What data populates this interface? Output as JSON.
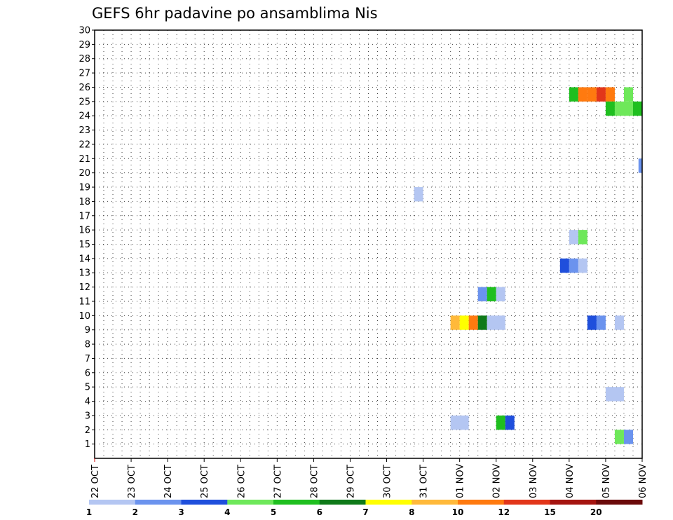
{
  "chart_data": {
    "type": "heatmap",
    "title": "GEFS 6hr padavine po ansamblima Nis",
    "xlabel": "",
    "ylabel": "",
    "x_tick_labels": [
      "22 OCT",
      "23 OCT",
      "24 OCT",
      "25 OCT",
      "26 OCT",
      "27 OCT",
      "28 OCT",
      "29 OCT",
      "30 OCT",
      "31 OCT",
      "01 NOV",
      "02 NOV",
      "03 NOV",
      "04 NOV",
      "05 NOV",
      "06 NOV"
    ],
    "y_tick_labels": [
      "1",
      "2",
      "3",
      "4",
      "5",
      "6",
      "7",
      "8",
      "9",
      "10",
      "11",
      "12",
      "13",
      "14",
      "15",
      "16",
      "17",
      "18",
      "19",
      "20",
      "21",
      "22",
      "23",
      "24",
      "25",
      "26",
      "27",
      "28",
      "29",
      "30"
    ],
    "xlim_days": [
      0,
      15
    ],
    "ylim": [
      0,
      30
    ],
    "grid": true,
    "colorbar": {
      "labels": [
        "1",
        "2",
        "3",
        "4",
        "5",
        "6",
        "7",
        "8",
        "10",
        "12",
        "15",
        "20"
      ],
      "colors": [
        "#b4c6f2",
        "#6b93ee",
        "#1f4fdc",
        "#6ee85a",
        "#1fbf1f",
        "#0f7a19",
        "#ffff00",
        "#ffb93a",
        "#ff7a0f",
        "#e2361a",
        "#a51410",
        "#6b0a0a"
      ]
    },
    "cells": [
      {
        "member": 25.5,
        "day": 13.0,
        "days": 0.25,
        "size": 1,
        "color": "#1fbf1f"
      },
      {
        "member": 25.5,
        "day": 13.25,
        "days": 0.25,
        "size": 1,
        "color": "#ff7a0f"
      },
      {
        "member": 25.5,
        "day": 13.5,
        "days": 0.25,
        "size": 1,
        "color": "#ff7a0f"
      },
      {
        "member": 25.5,
        "day": 13.75,
        "days": 0.25,
        "size": 1,
        "color": "#e2361a"
      },
      {
        "member": 25.5,
        "day": 14.0,
        "days": 0.25,
        "size": 1,
        "color": "#ff7a0f"
      },
      {
        "member": 25.5,
        "day": 14.5,
        "days": 0.25,
        "size": 1,
        "color": "#6ee85a"
      },
      {
        "member": 24.5,
        "day": 14.0,
        "days": 0.25,
        "size": 1,
        "color": "#1fbf1f"
      },
      {
        "member": 24.5,
        "day": 14.25,
        "days": 0.5,
        "size": 1,
        "color": "#6ee85a"
      },
      {
        "member": 24.5,
        "day": 14.75,
        "days": 0.25,
        "size": 1,
        "color": "#1fbf1f"
      },
      {
        "member": 20.5,
        "day": 14.9,
        "days": 0.1,
        "size": 1,
        "color": "#6b93ee"
      },
      {
        "member": 18.5,
        "day": 8.75,
        "days": 0.25,
        "size": 1,
        "color": "#b4c6f2"
      },
      {
        "member": 15.5,
        "day": 13.0,
        "days": 0.25,
        "size": 1,
        "color": "#b4c6f2"
      },
      {
        "member": 15.5,
        "day": 13.25,
        "days": 0.25,
        "size": 1,
        "color": "#6ee85a"
      },
      {
        "member": 13.5,
        "day": 12.75,
        "days": 0.25,
        "size": 1,
        "color": "#1f4fdc"
      },
      {
        "member": 13.5,
        "day": 13.0,
        "days": 0.25,
        "size": 1,
        "color": "#6b93ee"
      },
      {
        "member": 13.5,
        "day": 13.25,
        "days": 0.25,
        "size": 1,
        "color": "#b4c6f2"
      },
      {
        "member": 11.5,
        "day": 10.5,
        "days": 0.25,
        "size": 1,
        "color": "#6b93ee"
      },
      {
        "member": 11.5,
        "day": 10.75,
        "days": 0.25,
        "size": 1,
        "color": "#1fbf1f"
      },
      {
        "member": 11.5,
        "day": 11.0,
        "days": 0.25,
        "size": 1,
        "color": "#b4c6f2"
      },
      {
        "member": 9.5,
        "day": 9.75,
        "days": 0.25,
        "size": 1,
        "color": "#ffb93a"
      },
      {
        "member": 9.5,
        "day": 10.0,
        "days": 0.25,
        "size": 1,
        "color": "#ffff00"
      },
      {
        "member": 9.5,
        "day": 10.25,
        "days": 0.25,
        "size": 1,
        "color": "#ff7a0f"
      },
      {
        "member": 9.5,
        "day": 10.5,
        "days": 0.25,
        "size": 1,
        "color": "#0f7a19"
      },
      {
        "member": 9.5,
        "day": 10.75,
        "days": 0.5,
        "size": 1,
        "color": "#b4c6f2"
      },
      {
        "member": 9.5,
        "day": 13.5,
        "days": 0.25,
        "size": 1,
        "color": "#1f4fdc"
      },
      {
        "member": 9.5,
        "day": 13.75,
        "days": 0.25,
        "size": 1,
        "color": "#6b93ee"
      },
      {
        "member": 9.5,
        "day": 14.25,
        "days": 0.25,
        "size": 1,
        "color": "#b4c6f2"
      },
      {
        "member": 4.5,
        "day": 14.0,
        "days": 0.5,
        "size": 1,
        "color": "#b4c6f2"
      },
      {
        "member": 2.5,
        "day": 9.75,
        "days": 0.5,
        "size": 1,
        "color": "#b4c6f2"
      },
      {
        "member": 2.5,
        "day": 11.0,
        "days": 0.25,
        "size": 1,
        "color": "#1fbf1f"
      },
      {
        "member": 2.5,
        "day": 11.25,
        "days": 0.25,
        "size": 1,
        "color": "#1f4fdc"
      },
      {
        "member": 1.5,
        "day": 14.25,
        "days": 0.25,
        "size": 1,
        "color": "#6ee85a"
      },
      {
        "member": 1.5,
        "day": 14.5,
        "days": 0.25,
        "size": 1,
        "color": "#6b93ee"
      }
    ]
  }
}
